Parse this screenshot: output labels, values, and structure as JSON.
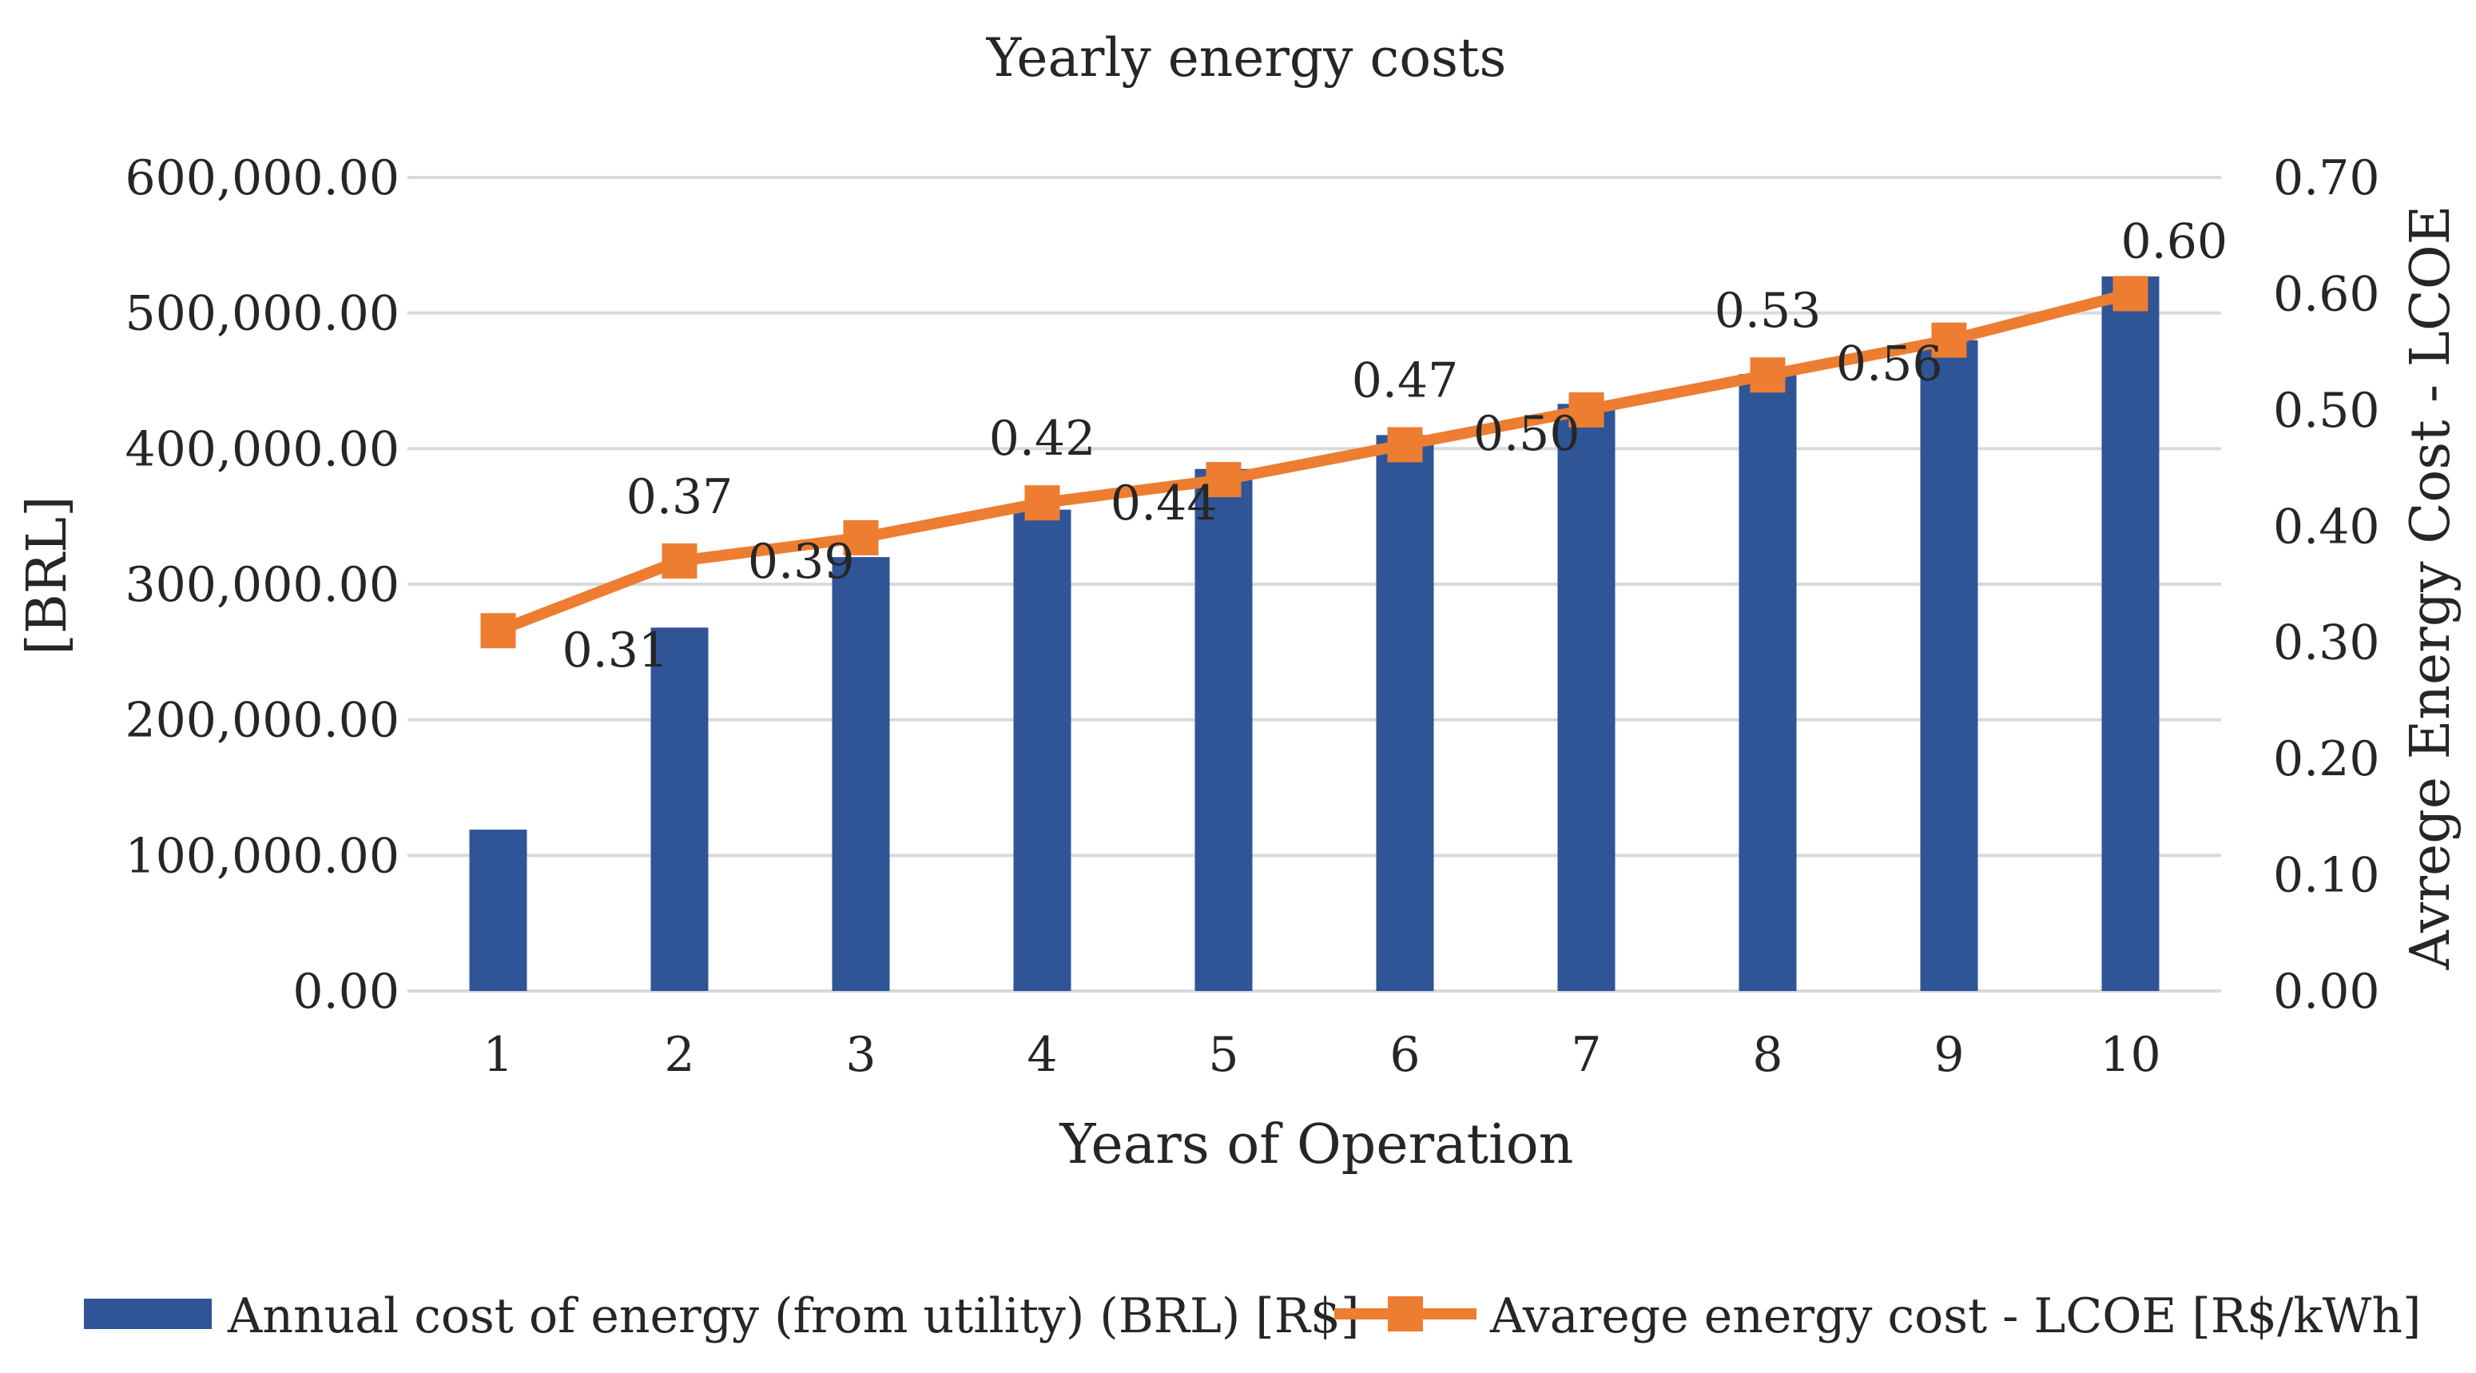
{
  "chart_data": {
    "type": "bar+line",
    "title": "Yearly energy costs",
    "xlabel": "Years of Operation",
    "ylabel_left": "[BRL]",
    "ylabel_right": "Avrege Energy Cost - LCOE",
    "categories": [
      "1",
      "2",
      "3",
      "4",
      "5",
      "6",
      "7",
      "8",
      "9",
      "10"
    ],
    "left_axis": {
      "ylim": [
        0,
        600000
      ],
      "ticks": [
        0,
        100000,
        200000,
        300000,
        400000,
        500000,
        600000
      ],
      "tick_labels": [
        "0.00",
        "100,000.00",
        "200,000.00",
        "300,000.00",
        "400,000.00",
        "500,000.00",
        "600,000.00"
      ]
    },
    "right_axis": {
      "ylim": [
        0,
        0.7
      ],
      "ticks": [
        0,
        0.1,
        0.2,
        0.3,
        0.4,
        0.5,
        0.6,
        0.7
      ],
      "tick_labels": [
        "0.00",
        "0.10",
        "0.20",
        "0.30",
        "0.40",
        "0.50",
        "0.60",
        "0.70"
      ]
    },
    "grid": true,
    "legend_position": "bottom",
    "series": [
      {
        "name": "Annual cost of energy (from utility) (BRL) [R$]",
        "type": "bar",
        "axis": "left",
        "color": "#2f5597",
        "values": [
          119000,
          268000,
          320000,
          355000,
          385000,
          410000,
          433000,
          455000,
          480000,
          527000
        ]
      },
      {
        "name": "Avarege energy cost - LCOE [R$/kWh]",
        "type": "line",
        "axis": "right",
        "color": "#ed7d31",
        "values": [
          0.31,
          0.37,
          0.39,
          0.42,
          0.44,
          0.47,
          0.5,
          0.53,
          0.56,
          0.6
        ],
        "data_labels": [
          "0.31",
          "0.37",
          "0.39",
          "0.42",
          "0.44",
          "0.47",
          "0.50",
          "0.53",
          "0.56",
          "0.60"
        ]
      }
    ]
  }
}
